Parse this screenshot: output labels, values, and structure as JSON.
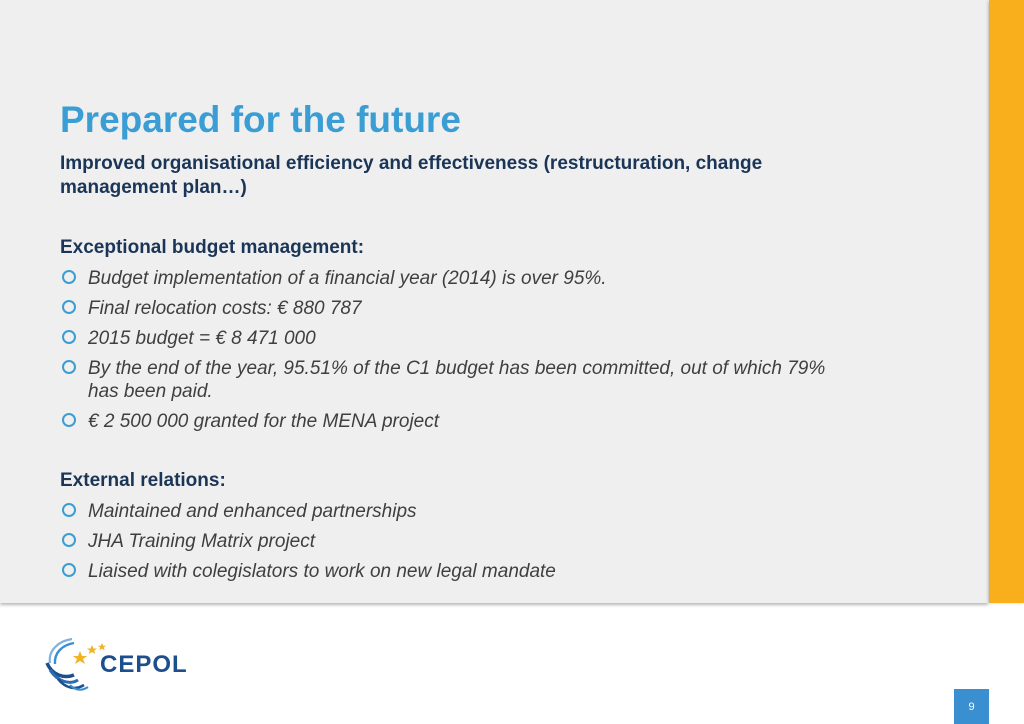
{
  "slide": {
    "title": "Prepared for the future",
    "subtitle": "Improved organisational efficiency and effectiveness (restructuration, change management plan…)",
    "sections": [
      {
        "heading": "Exceptional budget management:",
        "bullets": [
          "Budget implementation of a financial year (2014) is over 95%.",
          "Final relocation costs: € 880 787",
          "2015 budget = € 8 471 000",
          "By the end of the year, 95.51% of the C1 budget has been committed, out of which 79% has been paid.",
          "€ 2 500 000 granted for the MENA project"
        ]
      },
      {
        "heading": "External relations:",
        "bullets": [
          "Maintained and enhanced partnerships",
          "JHA Training Matrix project",
          "Liaised with colegislators to work on new legal mandate"
        ]
      }
    ]
  },
  "footer": {
    "logo_text": "CEPOL",
    "page_number": "9"
  },
  "colors": {
    "title": "#3a9dd3",
    "heading": "#1b3557",
    "accent_bar": "#f9ae1b",
    "page_badge": "#3a8fd0"
  }
}
